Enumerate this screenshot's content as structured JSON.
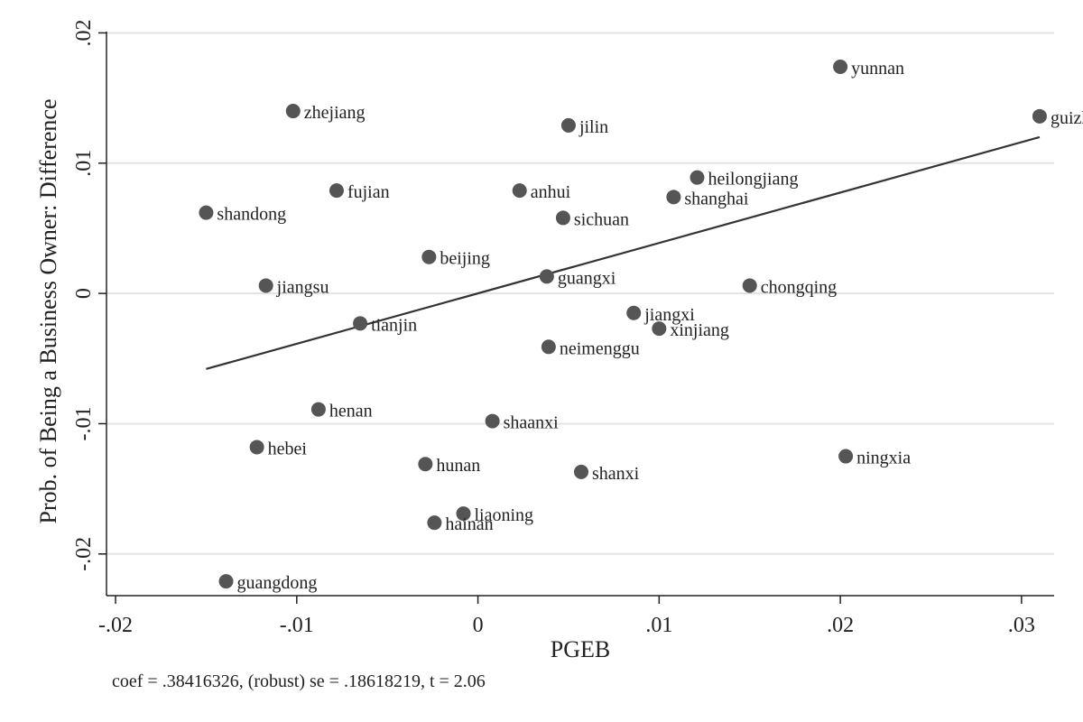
{
  "chart_data": {
    "type": "scatter",
    "xlabel": "PGEB",
    "ylabel": "Prob. of Being a Business Owner: Difference",
    "xlim": [
      -0.0205,
      0.0318
    ],
    "ylim": [
      -0.0232,
      0.0201
    ],
    "x_ticks": [
      {
        "value": -0.02,
        "label": "-.02"
      },
      {
        "value": -0.01,
        "label": "-.01"
      },
      {
        "value": 0,
        "label": "0"
      },
      {
        "value": 0.01,
        "label": ".01"
      },
      {
        "value": 0.02,
        "label": ".02"
      },
      {
        "value": 0.03,
        "label": ".03"
      }
    ],
    "y_ticks": [
      {
        "value": -0.02,
        "label": "-.02"
      },
      {
        "value": -0.01,
        "label": "-.01"
      },
      {
        "value": 0,
        "label": "0"
      },
      {
        "value": 0.01,
        "label": ".01"
      },
      {
        "value": 0.02,
        "label": ".02"
      }
    ],
    "grid": "horizontal",
    "fit_line": {
      "x": [
        -0.015,
        0.031
      ],
      "y": [
        -0.0058,
        0.012
      ]
    },
    "points": [
      {
        "label": "yunnan",
        "x": 0.02,
        "y": 0.0174
      },
      {
        "label": "guizhou",
        "x": 0.031,
        "y": 0.0136
      },
      {
        "label": "zhejiang",
        "x": -0.0102,
        "y": 0.014
      },
      {
        "label": "jilin",
        "x": 0.005,
        "y": 0.0129
      },
      {
        "label": "heilongjiang",
        "x": 0.0121,
        "y": 0.0089
      },
      {
        "label": "fujian",
        "x": -0.0078,
        "y": 0.0079
      },
      {
        "label": "anhui",
        "x": 0.0023,
        "y": 0.0079
      },
      {
        "label": "shanghai",
        "x": 0.0108,
        "y": 0.0074
      },
      {
        "label": "shandong",
        "x": -0.015,
        "y": 0.0062
      },
      {
        "label": "sichuan",
        "x": 0.0047,
        "y": 0.0058
      },
      {
        "label": "beijing",
        "x": -0.0027,
        "y": 0.0028
      },
      {
        "label": "guangxi",
        "x": 0.0038,
        "y": 0.0013
      },
      {
        "label": "jiangsu",
        "x": -0.0117,
        "y": 0.0006
      },
      {
        "label": "chongqing",
        "x": 0.015,
        "y": 0.0006
      },
      {
        "label": "jiangxi",
        "x": 0.0086,
        "y": -0.0015
      },
      {
        "label": "tianjin",
        "x": -0.0065,
        "y": -0.0023
      },
      {
        "label": "xinjiang",
        "x": 0.01,
        "y": -0.0027
      },
      {
        "label": "neimenggu",
        "x": 0.0039,
        "y": -0.0041
      },
      {
        "label": "henan",
        "x": -0.0088,
        "y": -0.0089
      },
      {
        "label": "shaanxi",
        "x": 0.0008,
        "y": -0.0098
      },
      {
        "label": "hebei",
        "x": -0.0122,
        "y": -0.0118
      },
      {
        "label": "ningxia",
        "x": 0.0203,
        "y": -0.0125
      },
      {
        "label": "hunan",
        "x": -0.0029,
        "y": -0.0131
      },
      {
        "label": "shanxi",
        "x": 0.0057,
        "y": -0.0137
      },
      {
        "label": "liaoning",
        "x": -0.0008,
        "y": -0.0169
      },
      {
        "label": "hainan",
        "x": -0.0024,
        "y": -0.0176
      },
      {
        "label": "guangdong",
        "x": -0.0139,
        "y": -0.0221
      }
    ],
    "note": "coef = .38416326, (robust) se = .18618219, t = 2.06"
  }
}
